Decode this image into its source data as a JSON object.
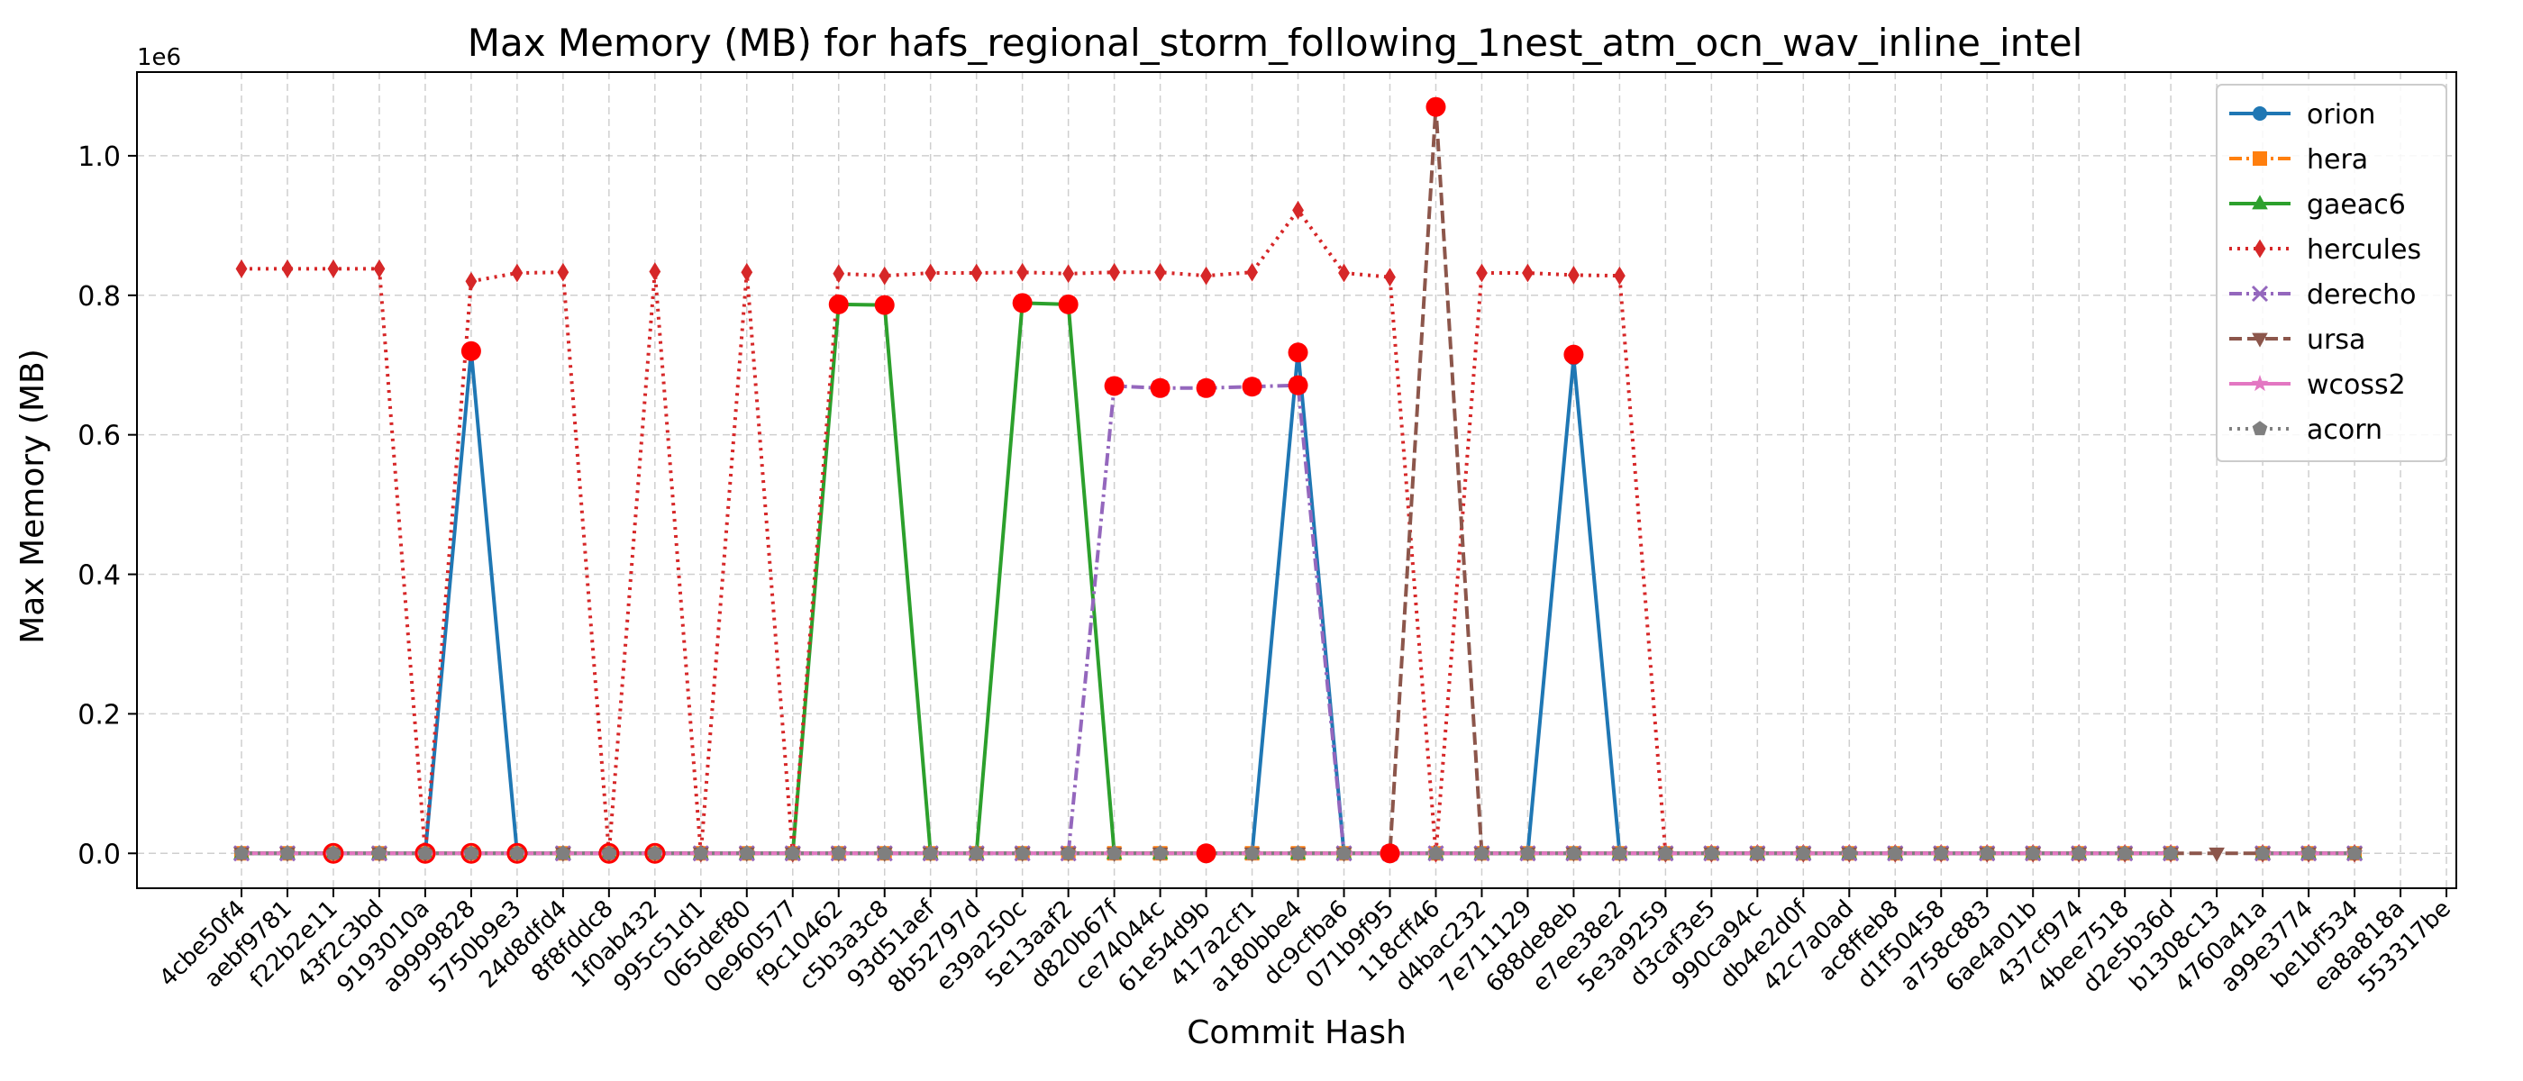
{
  "chart_data": {
    "type": "line",
    "title": "Max Memory (MB) for hafs_regional_storm_following_1nest_atm_ocn_wav_inline_intel",
    "xlabel": "Commit Hash",
    "ylabel": "Max Memory (MB)",
    "y_offset_label": "1e6",
    "y_scale_factor": 1000000,
    "ylim": [
      -0.05,
      1.12
    ],
    "y_ticks": [
      0.0,
      0.2,
      0.4,
      0.6,
      0.8,
      1.0
    ],
    "y_tick_labels": [
      "0.0",
      "0.2",
      "0.4",
      "0.6",
      "0.8",
      "1.0"
    ],
    "grid": true,
    "legend_position": "top-right",
    "categories": [
      "4cbe50f4",
      "aebf9781",
      "f22b2e11",
      "43f2c3bd",
      "9193010a",
      "a9999828",
      "5750b9e3",
      "24d8dfd4",
      "8f8fddc8",
      "1f0ab432",
      "995c51d1",
      "065def80",
      "0e960577",
      "f9c10462",
      "c5b3a3c8",
      "93d51aef",
      "8b52797d",
      "e39a250c",
      "5e13aaf2",
      "d820b67f",
      "ce74044c",
      "61e54d9b",
      "417a2cf1",
      "a180bbe4",
      "dc9cfba6",
      "071b9f95",
      "118cff46",
      "d4bac232",
      "7e711129",
      "688de8eb",
      "e7ee38e2",
      "5e3a9259",
      "d3caf3e5",
      "990ca94c",
      "db4e2d0f",
      "42c7a0ad",
      "ac8ffeb8",
      "d1f50458",
      "a758c883",
      "6ae4a01b",
      "437cf974",
      "4bee7518",
      "d2e5b36d",
      "b1308c13",
      "4760a41a",
      "a99e3774",
      "be1bf534",
      "ea8a818a",
      "553317be"
    ],
    "series": [
      {
        "name": "orion",
        "color": "#1f77b4",
        "marker": "circle",
        "line": "solid",
        "values": [
          0,
          0,
          0,
          0,
          0,
          0.72,
          0,
          0,
          0,
          0,
          0,
          0,
          0,
          0,
          0,
          0,
          0,
          0,
          0,
          0,
          0,
          0,
          0,
          0.72,
          0,
          0,
          0,
          0,
          0,
          0.71,
          0,
          0,
          0,
          0,
          0,
          0,
          0,
          0,
          0,
          0,
          0,
          0,
          0,
          null,
          0,
          0,
          0,
          null,
          null
        ]
      },
      {
        "name": "hera",
        "color": "#ff7f0e",
        "marker": "square",
        "line": "dashdot",
        "values": [
          0,
          0,
          0,
          0,
          0,
          0,
          0,
          0,
          0,
          0,
          0,
          0,
          0,
          0,
          0,
          0,
          0,
          0,
          0,
          0,
          0,
          0,
          0,
          0,
          0,
          0,
          0,
          0,
          0,
          0,
          0,
          0,
          0,
          0,
          0,
          0,
          0,
          0,
          0,
          0,
          0,
          0,
          0,
          null,
          0,
          0,
          0,
          null,
          null
        ]
      },
      {
        "name": "gaeac6",
        "color": "#2ca02c",
        "marker": "triangle-up",
        "line": "solid",
        "values": [
          0,
          0,
          0,
          0,
          0,
          0,
          0,
          0,
          0,
          0,
          0,
          0,
          0,
          0.787,
          0.786,
          0,
          0,
          0.789,
          0.787,
          0,
          0,
          0,
          0,
          0,
          0,
          0,
          0,
          0,
          0,
          0,
          0,
          0,
          0,
          0,
          0,
          0,
          0,
          0,
          0,
          0,
          0,
          0,
          0,
          null,
          0,
          0,
          0,
          null,
          null
        ]
      },
      {
        "name": "hercules",
        "color": "#d62728",
        "marker": "diamond",
        "line": "dotted",
        "values": [
          0.838,
          0.838,
          0.838,
          0.838,
          0,
          0.82,
          0.832,
          0.833,
          0,
          0.834,
          0,
          0.833,
          0,
          0.831,
          0.828,
          0.832,
          0.832,
          0.833,
          0.831,
          0.833,
          0.833,
          0.828,
          0.833,
          0.922,
          0.832,
          0.826,
          0,
          0.832,
          0.832,
          0.829,
          0.828,
          0,
          0,
          0,
          0,
          0,
          0,
          0,
          0,
          0,
          0,
          0,
          0,
          null,
          0,
          0,
          0,
          null,
          null
        ]
      },
      {
        "name": "derecho",
        "color": "#9467bd",
        "marker": "x",
        "line": "dashdot",
        "values": [
          0,
          0,
          0,
          0,
          0,
          0,
          0,
          0,
          0,
          0,
          0,
          0,
          0,
          0,
          0,
          0,
          0,
          0,
          0,
          0.67,
          0.667,
          0.667,
          0.669,
          0.671,
          0,
          0,
          0,
          0,
          0,
          0,
          0,
          0,
          0,
          0,
          0,
          0,
          0,
          0,
          0,
          0,
          0,
          0,
          0,
          null,
          0,
          0,
          0,
          null,
          null
        ]
      },
      {
        "name": "ursa",
        "color": "#8c564b",
        "marker": "triangle-down",
        "line": "dashed",
        "values": [
          0,
          0,
          0,
          0,
          0,
          0,
          0,
          0,
          0,
          0,
          0,
          0,
          0,
          0,
          0,
          0,
          0,
          0,
          0,
          0,
          0,
          0,
          0,
          0,
          0,
          0,
          1.07,
          0,
          0,
          0,
          0,
          0,
          0,
          0,
          0,
          0,
          0,
          0,
          0,
          0,
          0,
          0,
          0,
          0,
          0,
          0,
          0,
          null,
          null
        ]
      },
      {
        "name": "wcoss2",
        "color": "#e377c2",
        "marker": "star",
        "line": "solid",
        "values": [
          0,
          0,
          0,
          0,
          0,
          0,
          0,
          0,
          0,
          0,
          0,
          0,
          0,
          0,
          0,
          0,
          0,
          0,
          0,
          0,
          0,
          0,
          0,
          0,
          0,
          0,
          0,
          0,
          0,
          0,
          0,
          0,
          0,
          0,
          0,
          0,
          0,
          0,
          0,
          0,
          0,
          0,
          0,
          null,
          0,
          0,
          0,
          null,
          null
        ]
      },
      {
        "name": "acorn",
        "color": "#7f7f7f",
        "marker": "pentagon",
        "line": "dotted",
        "values": [
          0,
          0,
          0,
          0,
          0,
          0,
          0,
          0,
          0,
          0,
          0,
          0,
          0,
          0,
          0,
          0,
          0,
          0,
          0,
          0,
          0,
          0,
          0,
          0,
          0,
          0,
          0,
          0,
          0,
          0,
          0,
          0,
          0,
          0,
          0,
          0,
          0,
          0,
          0,
          0,
          0,
          0,
          0,
          null,
          0,
          0,
          0,
          null,
          null
        ]
      }
    ],
    "highlight_color": "#ff0000",
    "highlights": [
      {
        "x": "f22b2e11",
        "y": 0,
        "style": "ring"
      },
      {
        "x": "9193010a",
        "y": 0,
        "style": "ring"
      },
      {
        "x": "a9999828",
        "y": 0.72,
        "style": "dot"
      },
      {
        "x": "a9999828",
        "y": 0,
        "style": "ring"
      },
      {
        "x": "5750b9e3",
        "y": 0,
        "style": "ring"
      },
      {
        "x": "8f8fddc8",
        "y": 0,
        "style": "ring"
      },
      {
        "x": "1f0ab432",
        "y": 0,
        "style": "ring"
      },
      {
        "x": "f9c10462",
        "y": 0.787,
        "style": "dot"
      },
      {
        "x": "c5b3a3c8",
        "y": 0.786,
        "style": "dot"
      },
      {
        "x": "e39a250c",
        "y": 0.789,
        "style": "dot"
      },
      {
        "x": "5e13aaf2",
        "y": 0.787,
        "style": "dot"
      },
      {
        "x": "d820b67f",
        "y": 0.67,
        "style": "dot"
      },
      {
        "x": "ce74044c",
        "y": 0.667,
        "style": "dot"
      },
      {
        "x": "61e54d9b",
        "y": 0.667,
        "style": "dot"
      },
      {
        "x": "61e54d9b",
        "y": 0,
        "style": "dot"
      },
      {
        "x": "417a2cf1",
        "y": 0.669,
        "style": "dot"
      },
      {
        "x": "a180bbe4",
        "y": 0.718,
        "style": "dot"
      },
      {
        "x": "a180bbe4",
        "y": 0.671,
        "style": "dot"
      },
      {
        "x": "071b9f95",
        "y": 0,
        "style": "dot"
      },
      {
        "x": "118cff46",
        "y": 1.07,
        "style": "dot"
      },
      {
        "x": "688de8eb",
        "y": 0.715,
        "style": "dot"
      }
    ]
  }
}
